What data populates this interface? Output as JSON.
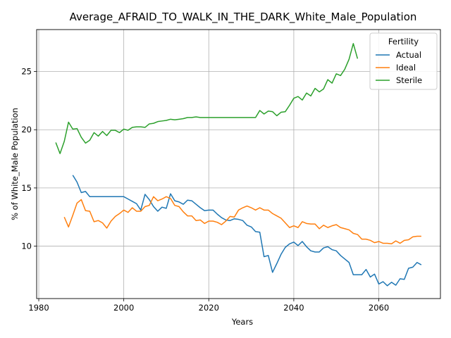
{
  "chart_data": {
    "type": "line",
    "title": "Average_AFRAID_TO_WALK_IN_THE_DARK_White_Male_Population",
    "xlabel": "Years",
    "ylabel": "% of White_Male Population",
    "xlim": [
      1979.5,
      2074.5
    ],
    "ylim": [
      5.5,
      28.6
    ],
    "xticks": [
      1980,
      2000,
      2020,
      2040,
      2060
    ],
    "yticks": [
      10,
      15,
      20,
      25
    ],
    "grid": true,
    "legend": {
      "title": "Fertility",
      "placement": "top-right"
    },
    "series": [
      {
        "name": "Actual",
        "color": "#1f77b4",
        "x": [
          1988,
          1989,
          1990,
          1991,
          1992,
          1993,
          1994,
          1995,
          1996,
          1997,
          1998,
          1999,
          2000,
          2001,
          2002,
          2003,
          2004,
          2005,
          2006,
          2007,
          2008,
          2009,
          2010,
          2011,
          2012,
          2013,
          2014,
          2015,
          2016,
          2017,
          2018,
          2019,
          2020,
          2021,
          2022,
          2023,
          2024,
          2025,
          2026,
          2027,
          2028,
          2029,
          2030,
          2031,
          2032,
          2033,
          2034,
          2035,
          2036,
          2037,
          2038,
          2039,
          2040,
          2041,
          2042,
          2043,
          2044,
          2045,
          2046,
          2047,
          2048,
          2049,
          2050,
          2051,
          2052,
          2053,
          2054,
          2055,
          2056,
          2057,
          2058,
          2059,
          2060,
          2061,
          2062,
          2063,
          2064,
          2065,
          2066,
          2067,
          2068,
          2069,
          2070
        ],
        "values": [
          16.1,
          15.5,
          14.6,
          14.7,
          14.25,
          14.25,
          14.25,
          14.25,
          14.25,
          14.25,
          14.25,
          14.25,
          14.25,
          14.05,
          13.85,
          13.65,
          13.1,
          14.45,
          14.0,
          13.4,
          13.0,
          13.35,
          13.25,
          14.5,
          13.9,
          13.8,
          13.6,
          13.95,
          13.9,
          13.6,
          13.3,
          13.05,
          13.1,
          13.1,
          12.75,
          12.45,
          12.25,
          12.2,
          12.35,
          12.3,
          12.2,
          11.8,
          11.65,
          11.25,
          11.2,
          9.1,
          9.2,
          7.75,
          8.5,
          9.3,
          9.9,
          10.2,
          10.35,
          10.05,
          10.4,
          9.95,
          9.6,
          9.5,
          9.5,
          9.85,
          9.95,
          9.7,
          9.6,
          9.2,
          8.9,
          8.6,
          7.55,
          7.55,
          7.55,
          8.0,
          7.35,
          7.6,
          6.75,
          6.95,
          6.6,
          6.9,
          6.65,
          7.2,
          7.15,
          8.1,
          8.2,
          8.6,
          8.4
        ]
      },
      {
        "name": "Ideal",
        "color": "#ff7f0e",
        "x": [
          1986,
          1987,
          1988,
          1989,
          1990,
          1991,
          1992,
          1993,
          1994,
          1995,
          1996,
          1997,
          1998,
          1999,
          2000,
          2001,
          2002,
          2003,
          2004,
          2005,
          2006,
          2007,
          2008,
          2009,
          2010,
          2011,
          2012,
          2013,
          2014,
          2015,
          2016,
          2017,
          2018,
          2019,
          2020,
          2021,
          2022,
          2023,
          2024,
          2025,
          2026,
          2027,
          2028,
          2029,
          2030,
          2031,
          2032,
          2033,
          2034,
          2035,
          2036,
          2037,
          2038,
          2039,
          2040,
          2041,
          2042,
          2043,
          2044,
          2045,
          2046,
          2047,
          2048,
          2049,
          2050,
          2051,
          2052,
          2053,
          2054,
          2055,
          2056,
          2057,
          2058,
          2059,
          2060,
          2061,
          2062,
          2063,
          2064,
          2065,
          2066,
          2067,
          2068,
          2069,
          2070
        ],
        "values": [
          12.5,
          11.65,
          12.65,
          13.7,
          14.0,
          13.05,
          13.0,
          12.1,
          12.2,
          12.0,
          11.55,
          12.15,
          12.55,
          12.8,
          13.1,
          12.9,
          13.3,
          13.0,
          13.0,
          13.4,
          13.5,
          14.25,
          13.9,
          14.05,
          14.25,
          14.1,
          13.5,
          13.4,
          12.95,
          12.6,
          12.6,
          12.2,
          12.25,
          11.95,
          12.15,
          12.15,
          12.05,
          11.85,
          12.15,
          12.55,
          12.5,
          13.1,
          13.3,
          13.45,
          13.3,
          13.1,
          13.3,
          13.1,
          13.1,
          12.8,
          12.6,
          12.4,
          12.0,
          11.6,
          11.75,
          11.6,
          12.1,
          11.95,
          11.9,
          11.9,
          11.5,
          11.8,
          11.6,
          11.75,
          11.85,
          11.6,
          11.5,
          11.4,
          11.1,
          11.0,
          10.6,
          10.6,
          10.5,
          10.3,
          10.4,
          10.25,
          10.25,
          10.2,
          10.45,
          10.25,
          10.5,
          10.55,
          10.8,
          10.85,
          10.85
        ]
      },
      {
        "name": "Sterile",
        "color": "#2ca02c",
        "x": [
          1984,
          1985,
          1986,
          1987,
          1988,
          1989,
          1990,
          1991,
          1992,
          1993,
          1994,
          1995,
          1996,
          1997,
          1998,
          1999,
          2000,
          2001,
          2002,
          2003,
          2004,
          2005,
          2006,
          2007,
          2008,
          2009,
          2010,
          2011,
          2012,
          2013,
          2014,
          2015,
          2016,
          2017,
          2018,
          2019,
          2020,
          2021,
          2022,
          2023,
          2024,
          2025,
          2026,
          2027,
          2028,
          2029,
          2030,
          2031,
          2032,
          2033,
          2034,
          2035,
          2036,
          2037,
          2038,
          2039,
          2040,
          2041,
          2042,
          2043,
          2044,
          2045,
          2046,
          2047,
          2048,
          2049,
          2050,
          2051,
          2052,
          2053,
          2054,
          2055
        ],
        "values": [
          18.9,
          17.95,
          19.0,
          20.65,
          20.05,
          20.1,
          19.35,
          18.85,
          19.1,
          19.75,
          19.45,
          19.85,
          19.5,
          19.95,
          19.95,
          19.75,
          20.05,
          19.95,
          20.2,
          20.25,
          20.25,
          20.2,
          20.5,
          20.55,
          20.7,
          20.75,
          20.8,
          20.9,
          20.85,
          20.9,
          20.95,
          21.05,
          21.05,
          21.1,
          21.05,
          21.05,
          21.05,
          21.05,
          21.05,
          21.05,
          21.05,
          21.05,
          21.05,
          21.05,
          21.05,
          21.05,
          21.05,
          21.05,
          21.65,
          21.35,
          21.6,
          21.55,
          21.2,
          21.5,
          21.55,
          22.1,
          22.7,
          22.85,
          22.55,
          23.15,
          22.9,
          23.55,
          23.25,
          23.5,
          24.3,
          24.0,
          24.8,
          24.65,
          25.2,
          26.05,
          27.4,
          26.1
        ]
      }
    ]
  }
}
